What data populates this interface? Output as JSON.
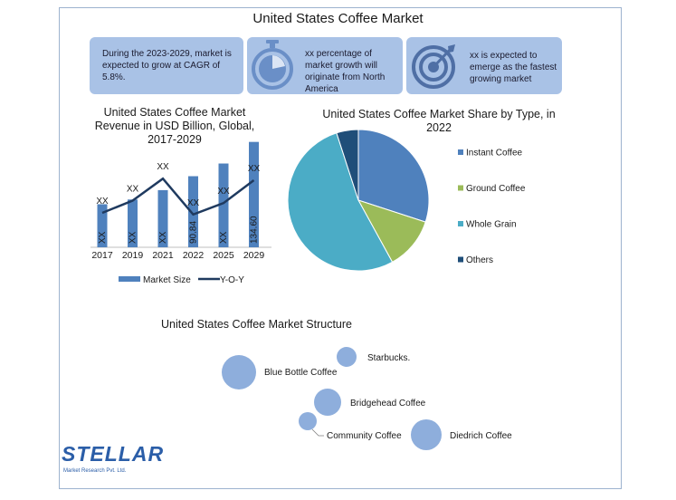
{
  "title": "United States Coffee Market",
  "stats": [
    {
      "text": "During the 2023-2029, market is expected to grow at CAGR of 5.8%.",
      "icon": "none"
    },
    {
      "text": "xx percentage of market growth will originate from North America",
      "icon": "stopwatch-icon"
    },
    {
      "text": "xx is expected to emerge as the fastest growing market",
      "icon": "target-icon"
    }
  ],
  "colors": {
    "bar": "#4f81bd",
    "line": "#1f3a5f",
    "instant": "#4f81bd",
    "ground": "#9bbb59",
    "whole_grain": "#4bacc6",
    "others": "#1f4e79",
    "bubble": "#8eaedc",
    "box": "#a9c2e6"
  },
  "chart_data": [
    {
      "type": "bar",
      "title": "United States Coffee Market Revenue in USD Billion, Global, 2017-2029",
      "categories": [
        "2017",
        "2019",
        "2021",
        "2022",
        "2025",
        "2029"
      ],
      "series": [
        {
          "name": "Market Size",
          "values": [
            55,
            61,
            73,
            90.8,
            107,
            134.6
          ],
          "labels": [
            "XX",
            "XX",
            "XX",
            "90.84",
            "XX",
            "134.60"
          ]
        },
        {
          "name": "Y-O-Y",
          "type": "line",
          "values": [
            30,
            45,
            72,
            28,
            42,
            70
          ],
          "labels": [
            "XX",
            "XX",
            "XX",
            "XX",
            "XX",
            "XX"
          ]
        }
      ],
      "legend": "bottom"
    },
    {
      "type": "pie",
      "title": "United States Coffee Market Share by Type, in 2022",
      "categories": [
        "Instant Coffee",
        "Ground Coffee",
        "Whole Grain",
        "Others"
      ],
      "values": [
        30,
        12,
        53,
        5
      ],
      "legend": "right"
    }
  ],
  "structure": {
    "title": "United States Coffee Market Structure",
    "companies": [
      "Starbucks.",
      "Blue Bottle Coffee",
      "Bridgehead Coffee",
      "Community Coffee",
      "Diedrich Coffee"
    ]
  },
  "logo": {
    "name": "STELLAR",
    "sub": "Market Research Pvt. Ltd."
  }
}
